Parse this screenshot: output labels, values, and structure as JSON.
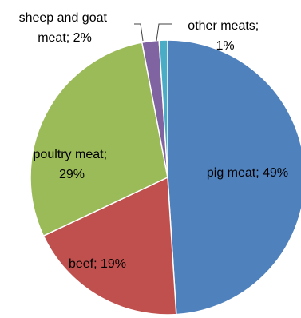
{
  "chart_data": {
    "type": "pie",
    "title": "",
    "start_angle_deg": 0,
    "direction": "clockwise",
    "legend": "none",
    "slices": [
      {
        "label": "pig meat",
        "value": 49,
        "label_line1": "pig meat; 49%",
        "label_line2": "",
        "color": "#4F81BD"
      },
      {
        "label": "beef",
        "value": 19,
        "label_line1": "beef; 19%",
        "label_line2": "",
        "color": "#C0504D"
      },
      {
        "label": "poultry meat",
        "value": 29,
        "label_line1": "poultry meat;",
        "label_line2": "29%",
        "color": "#9BBB59"
      },
      {
        "label": "sheep and goat meat",
        "value": 2,
        "label_line1": "sheep and goat",
        "label_line2": "meat; 2%",
        "color": "#8064A2"
      },
      {
        "label": "other meats",
        "value": 1,
        "label_line1": "other meats;",
        "label_line2": "1%",
        "color": "#4BACC6"
      }
    ]
  }
}
